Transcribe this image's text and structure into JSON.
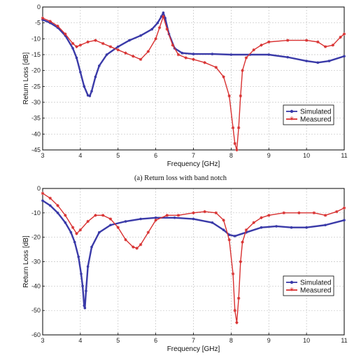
{
  "colors": {
    "simulated": "#3a3aa8",
    "measured": "#d83030",
    "grid": "#c4c4c4",
    "axis": "#000000"
  },
  "chart_data": [
    {
      "type": "line",
      "caption": "(a) Return loss with band notch",
      "xlabel": "Frequency [GHz]",
      "ylabel": "Return Loss [dB]",
      "xlim": [
        3,
        11
      ],
      "ylim": [
        -45,
        0
      ],
      "xticks": [
        3,
        4,
        5,
        6,
        7,
        8,
        9,
        10,
        11
      ],
      "yticks": [
        0,
        -5,
        -10,
        -15,
        -20,
        -25,
        -30,
        -35,
        -40,
        -45
      ],
      "grid": true,
      "legend_position": "lower-right",
      "series": [
        {
          "name": "Simulated",
          "color_key": "simulated",
          "marker": "circle",
          "x": [
            3.0,
            3.2,
            3.4,
            3.6,
            3.8,
            3.9,
            4.0,
            4.1,
            4.2,
            4.25,
            4.3,
            4.4,
            4.5,
            4.7,
            5.0,
            5.3,
            5.6,
            5.9,
            6.05,
            6.15,
            6.2,
            6.25,
            6.35,
            6.5,
            6.7,
            7.0,
            7.5,
            8.0,
            8.5,
            9.0,
            9.5,
            10.0,
            10.3,
            10.6,
            11.0
          ],
          "y": [
            -4,
            -5,
            -6.5,
            -9,
            -13,
            -16,
            -20.5,
            -25,
            -27.8,
            -28,
            -26.5,
            -22,
            -18.5,
            -15,
            -12.5,
            -10.5,
            -9,
            -7,
            -5,
            -3,
            -1.8,
            -3.5,
            -8.5,
            -13,
            -14.5,
            -14.8,
            -14.8,
            -15,
            -15,
            -15,
            -15.8,
            -17,
            -17.5,
            -17,
            -15.5
          ]
        },
        {
          "name": "Measured",
          "color_key": "measured",
          "marker": "star",
          "x": [
            3.0,
            3.2,
            3.4,
            3.6,
            3.8,
            3.9,
            4.0,
            4.2,
            4.4,
            4.6,
            4.8,
            5.0,
            5.2,
            5.4,
            5.6,
            5.8,
            6.0,
            6.1,
            6.2,
            6.3,
            6.45,
            6.6,
            6.8,
            7.0,
            7.3,
            7.6,
            7.8,
            7.95,
            8.05,
            8.1,
            8.15,
            8.2,
            8.25,
            8.3,
            8.4,
            8.6,
            8.8,
            9.0,
            9.5,
            10.0,
            10.3,
            10.5,
            10.7,
            10.9,
            11.0
          ],
          "y": [
            -3.5,
            -4.5,
            -6,
            -8.5,
            -11.5,
            -12.5,
            -12,
            -11,
            -10.5,
            -11.5,
            -12.5,
            -13.5,
            -14.5,
            -15.5,
            -16.5,
            -14,
            -10,
            -6.5,
            -3,
            -7,
            -12,
            -15,
            -16,
            -16.5,
            -17.5,
            -19,
            -22,
            -28,
            -38,
            -43,
            -45,
            -38,
            -28,
            -20,
            -16,
            -13.5,
            -12,
            -11,
            -10.5,
            -10.5,
            -11,
            -12.5,
            -12,
            -9.5,
            -8.5
          ]
        }
      ]
    },
    {
      "type": "line",
      "caption": "",
      "xlabel": "Frequency [GHz]",
      "ylabel": "Return Loss [dB]",
      "xlim": [
        3,
        11
      ],
      "ylim": [
        -60,
        0
      ],
      "xticks": [
        3,
        4,
        5,
        6,
        7,
        8,
        9,
        10,
        11
      ],
      "yticks": [
        0,
        -10,
        -20,
        -30,
        -40,
        -50,
        -60
      ],
      "grid": true,
      "legend_position": "lower-right",
      "series": [
        {
          "name": "Simulated",
          "color_key": "simulated",
          "marker": "circle",
          "x": [
            3.0,
            3.2,
            3.4,
            3.6,
            3.75,
            3.85,
            3.95,
            4.02,
            4.06,
            4.1,
            4.12,
            4.15,
            4.2,
            4.3,
            4.5,
            4.8,
            5.2,
            5.6,
            6.0,
            6.5,
            7.0,
            7.5,
            7.8,
            7.95,
            8.1,
            8.4,
            8.8,
            9.2,
            9.6,
            10.0,
            10.5,
            11.0
          ],
          "y": [
            -5,
            -7,
            -10,
            -14,
            -18,
            -22,
            -28,
            -35,
            -40,
            -48,
            -49,
            -42,
            -32,
            -24,
            -18,
            -15,
            -13.5,
            -12.5,
            -12,
            -12,
            -12.5,
            -14,
            -17,
            -19,
            -19.5,
            -18,
            -16,
            -15.5,
            -16,
            -16,
            -15,
            -13
          ]
        },
        {
          "name": "Measured",
          "color_key": "measured",
          "marker": "star",
          "x": [
            3.0,
            3.2,
            3.4,
            3.6,
            3.8,
            3.9,
            4.0,
            4.2,
            4.4,
            4.6,
            4.8,
            5.0,
            5.2,
            5.4,
            5.5,
            5.6,
            5.8,
            6.0,
            6.3,
            6.6,
            7.0,
            7.3,
            7.6,
            7.8,
            7.95,
            8.05,
            8.1,
            8.15,
            8.2,
            8.25,
            8.3,
            8.4,
            8.6,
            8.8,
            9.0,
            9.4,
            9.8,
            10.2,
            10.5,
            10.8,
            11.0
          ],
          "y": [
            -2,
            -4,
            -7,
            -11,
            -16,
            -18.5,
            -17,
            -13.5,
            -11,
            -11,
            -12.5,
            -16,
            -21,
            -24,
            -24.5,
            -23,
            -18,
            -13,
            -11,
            -11,
            -10,
            -9.5,
            -10,
            -13,
            -21,
            -35,
            -50,
            -55,
            -45,
            -30,
            -22,
            -17,
            -14,
            -12,
            -11,
            -10,
            -10,
            -10,
            -11,
            -9.5,
            -8
          ]
        }
      ]
    }
  ]
}
